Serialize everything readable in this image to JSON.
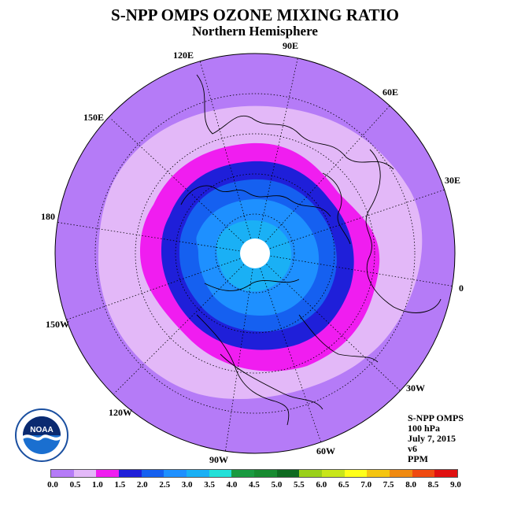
{
  "title": "S-NPP OMPS OZONE MIXING RATIO",
  "subtitle": "Northern Hemisphere",
  "longitude_labels": [
    "90E",
    "60E",
    "120E",
    "30E",
    "150E",
    "180",
    "0",
    "150W",
    "30W",
    "120W",
    "60W",
    "90W"
  ],
  "info": {
    "instrument": "S-NPP OMPS",
    "level": "100 hPa",
    "date": "July 7, 2015",
    "version": "v6",
    "units": "PPM"
  },
  "logo_text": "NOAA",
  "colorbar": {
    "ticks": [
      "0.0",
      "0.5",
      "1.0",
      "1.5",
      "2.0",
      "2.5",
      "3.0",
      "3.5",
      "4.0",
      "4.5",
      "5.0",
      "5.5",
      "6.0",
      "6.5",
      "7.0",
      "7.5",
      "8.0",
      "8.5",
      "9.0"
    ],
    "colors": [
      "#b57bf7",
      "#e3b8f8",
      "#f01df0",
      "#1f1fd9",
      "#1560f0",
      "#1e90ff",
      "#1ab0f5",
      "#22e0d8",
      "#1a9a40",
      "#178a30",
      "#0e6a20",
      "#9ad01a",
      "#c8e61a",
      "#ffff1a",
      "#f5c510",
      "#f08a10",
      "#f04a10",
      "#e01010",
      "#7a5030"
    ]
  }
}
